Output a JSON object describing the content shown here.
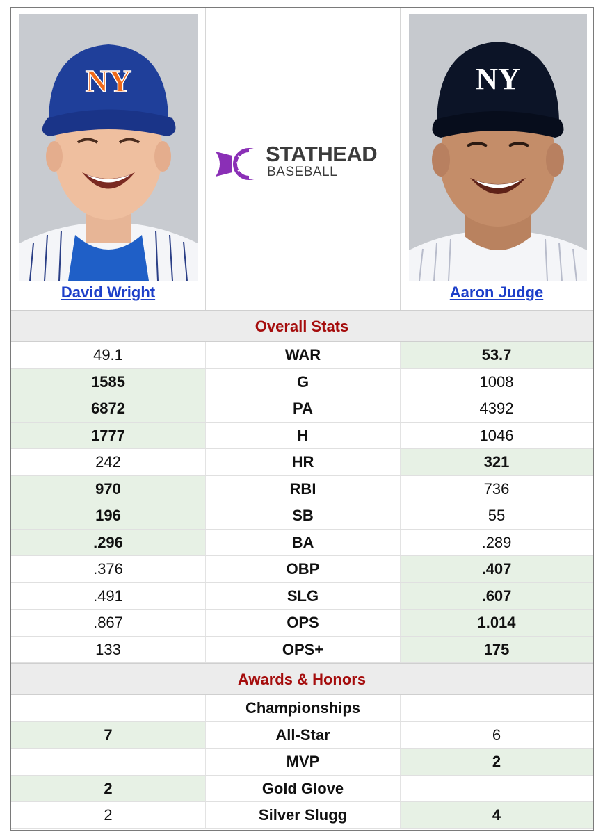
{
  "players": {
    "left": {
      "name": "David Wright"
    },
    "right": {
      "name": "Aaron Judge"
    }
  },
  "logo": {
    "line1": "STATHEAD",
    "line2": "BASEBALL"
  },
  "colors": {
    "winner_bg": "#e7f1e5",
    "section_title": "#a50d0d",
    "link": "#1d3fc9",
    "mets_blue": "#1f3f9a",
    "mets_orange": "#f06a1a",
    "yankees_navy": "#0c1427",
    "stathead_purple": "#8a2fb6"
  },
  "sections": {
    "overall": "Overall Stats",
    "awards": "Awards & Honors"
  },
  "overall_rows": [
    {
      "label": "WAR",
      "left": "49.1",
      "right": "53.7",
      "winner": "right"
    },
    {
      "label": "G",
      "left": "1585",
      "right": "1008",
      "winner": "left"
    },
    {
      "label": "PA",
      "left": "6872",
      "right": "4392",
      "winner": "left"
    },
    {
      "label": "H",
      "left": "1777",
      "right": "1046",
      "winner": "left"
    },
    {
      "label": "HR",
      "left": "242",
      "right": "321",
      "winner": "right"
    },
    {
      "label": "RBI",
      "left": "970",
      "right": "736",
      "winner": "left"
    },
    {
      "label": "SB",
      "left": "196",
      "right": "55",
      "winner": "left"
    },
    {
      "label": "BA",
      "left": ".296",
      "right": ".289",
      "winner": "left"
    },
    {
      "label": "OBP",
      "left": ".376",
      "right": ".407",
      "winner": "right"
    },
    {
      "label": "SLG",
      "left": ".491",
      "right": ".607",
      "winner": "right"
    },
    {
      "label": "OPS",
      "left": ".867",
      "right": "1.014",
      "winner": "right"
    },
    {
      "label": "OPS+",
      "left": "133",
      "right": "175",
      "winner": "right"
    }
  ],
  "award_rows": [
    {
      "label": "Championships",
      "left": "",
      "right": "",
      "winner": "none"
    },
    {
      "label": "All-Star",
      "left": "7",
      "right": "6",
      "winner": "left"
    },
    {
      "label": "MVP",
      "left": "",
      "right": "2",
      "winner": "right"
    },
    {
      "label": "Gold Glove",
      "left": "2",
      "right": "",
      "winner": "left"
    },
    {
      "label": "Silver Slugg",
      "left": "2",
      "right": "4",
      "winner": "right"
    }
  ]
}
